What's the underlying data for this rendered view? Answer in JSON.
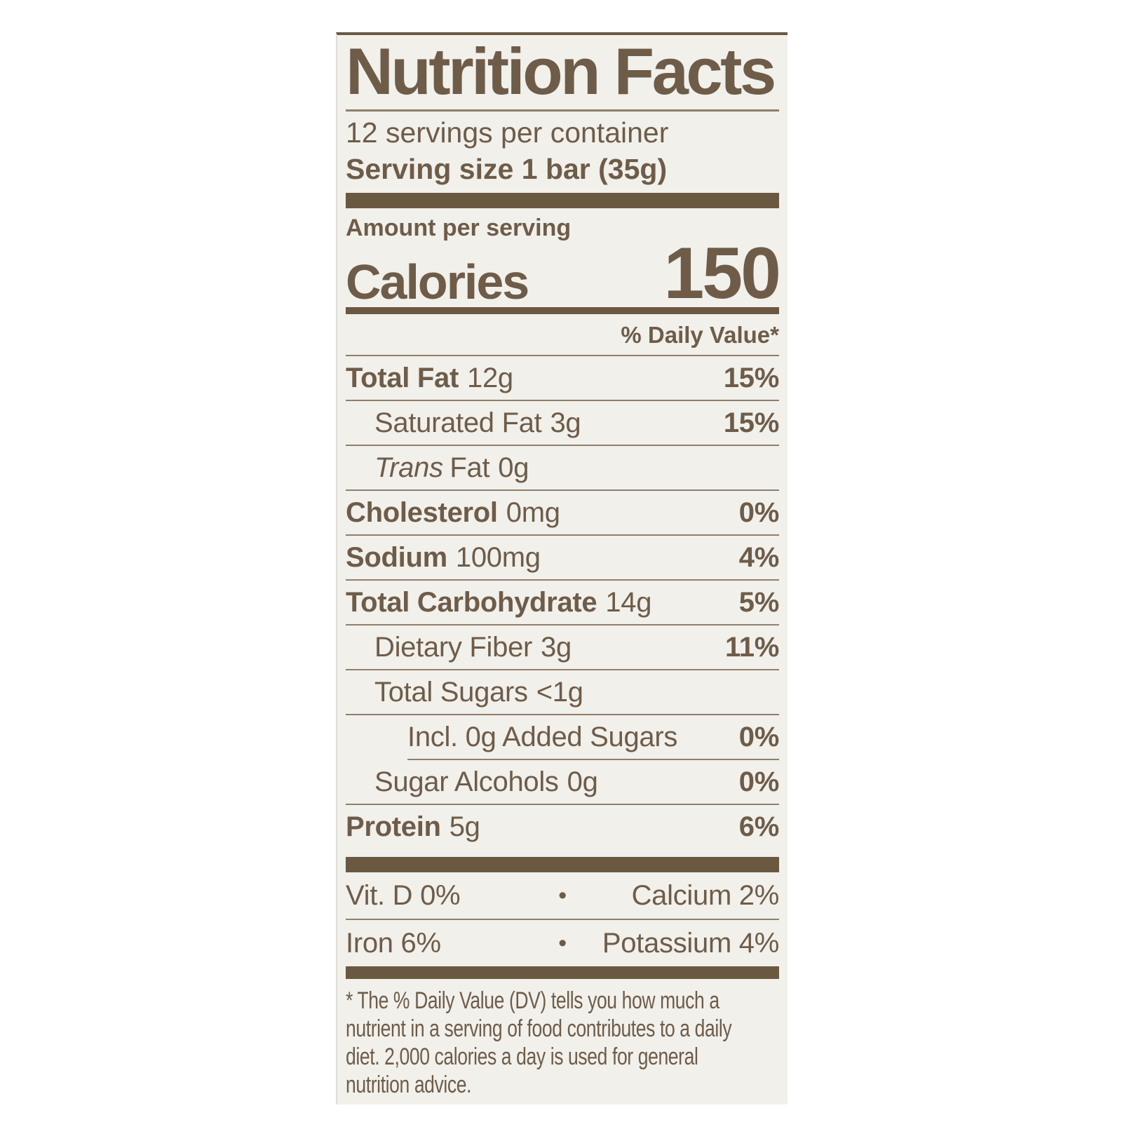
{
  "colors": {
    "text_brown": "#6E5C49",
    "bar_brown": "#6A5840",
    "hairline_brown": "#8F7E6B",
    "label_background": "#F1F0EB",
    "page_background": "#FFFFFF"
  },
  "label": {
    "title": "Nutrition Facts",
    "servings_per_container": "12 servings per container",
    "serving_size_label": "Serving size",
    "serving_size_value": "1 bar (35g)",
    "amount_per_serving": "Amount per serving",
    "calories_label": "Calories",
    "calories_value": "150",
    "daily_value_header": "% Daily Value*",
    "rows": [
      {
        "name": "Total Fat",
        "amount": "12g",
        "dv": "15%"
      },
      {
        "name": "Saturated Fat",
        "amount": "3g",
        "dv": "15%"
      },
      {
        "name_italic": "Trans",
        "name": "Fat",
        "amount": "0g",
        "dv": ""
      },
      {
        "name": "Cholesterol",
        "amount": "0mg",
        "dv": "0%"
      },
      {
        "name": "Sodium",
        "amount": "100mg",
        "dv": "4%"
      },
      {
        "name": "Total Carbohydrate",
        "amount": "14g",
        "dv": "5%"
      },
      {
        "name": "Dietary Fiber",
        "amount": "3g",
        "dv": "11%"
      },
      {
        "name": "Total Sugars",
        "amount": "<1g",
        "dv": ""
      },
      {
        "name": "Incl. 0g Added Sugars",
        "amount": "",
        "dv": "0%"
      },
      {
        "name": "Sugar Alcohols",
        "amount": "0g",
        "dv": "0%"
      },
      {
        "name": "Protein",
        "amount": "5g",
        "dv": "6%"
      }
    ],
    "micronutrients": {
      "bullet": "•",
      "rows": [
        {
          "left": "Vit. D 0%",
          "right": "Calcium 2%"
        },
        {
          "left": "Iron 6%",
          "right": "Potassium 4%"
        }
      ]
    },
    "footnote_lines": [
      "* The % Daily Value (DV) tells you how much a",
      "nutrient in a serving of food contributes to a daily",
      "diet. 2,000 calories a day is used for general",
      "nutrition advice."
    ]
  }
}
